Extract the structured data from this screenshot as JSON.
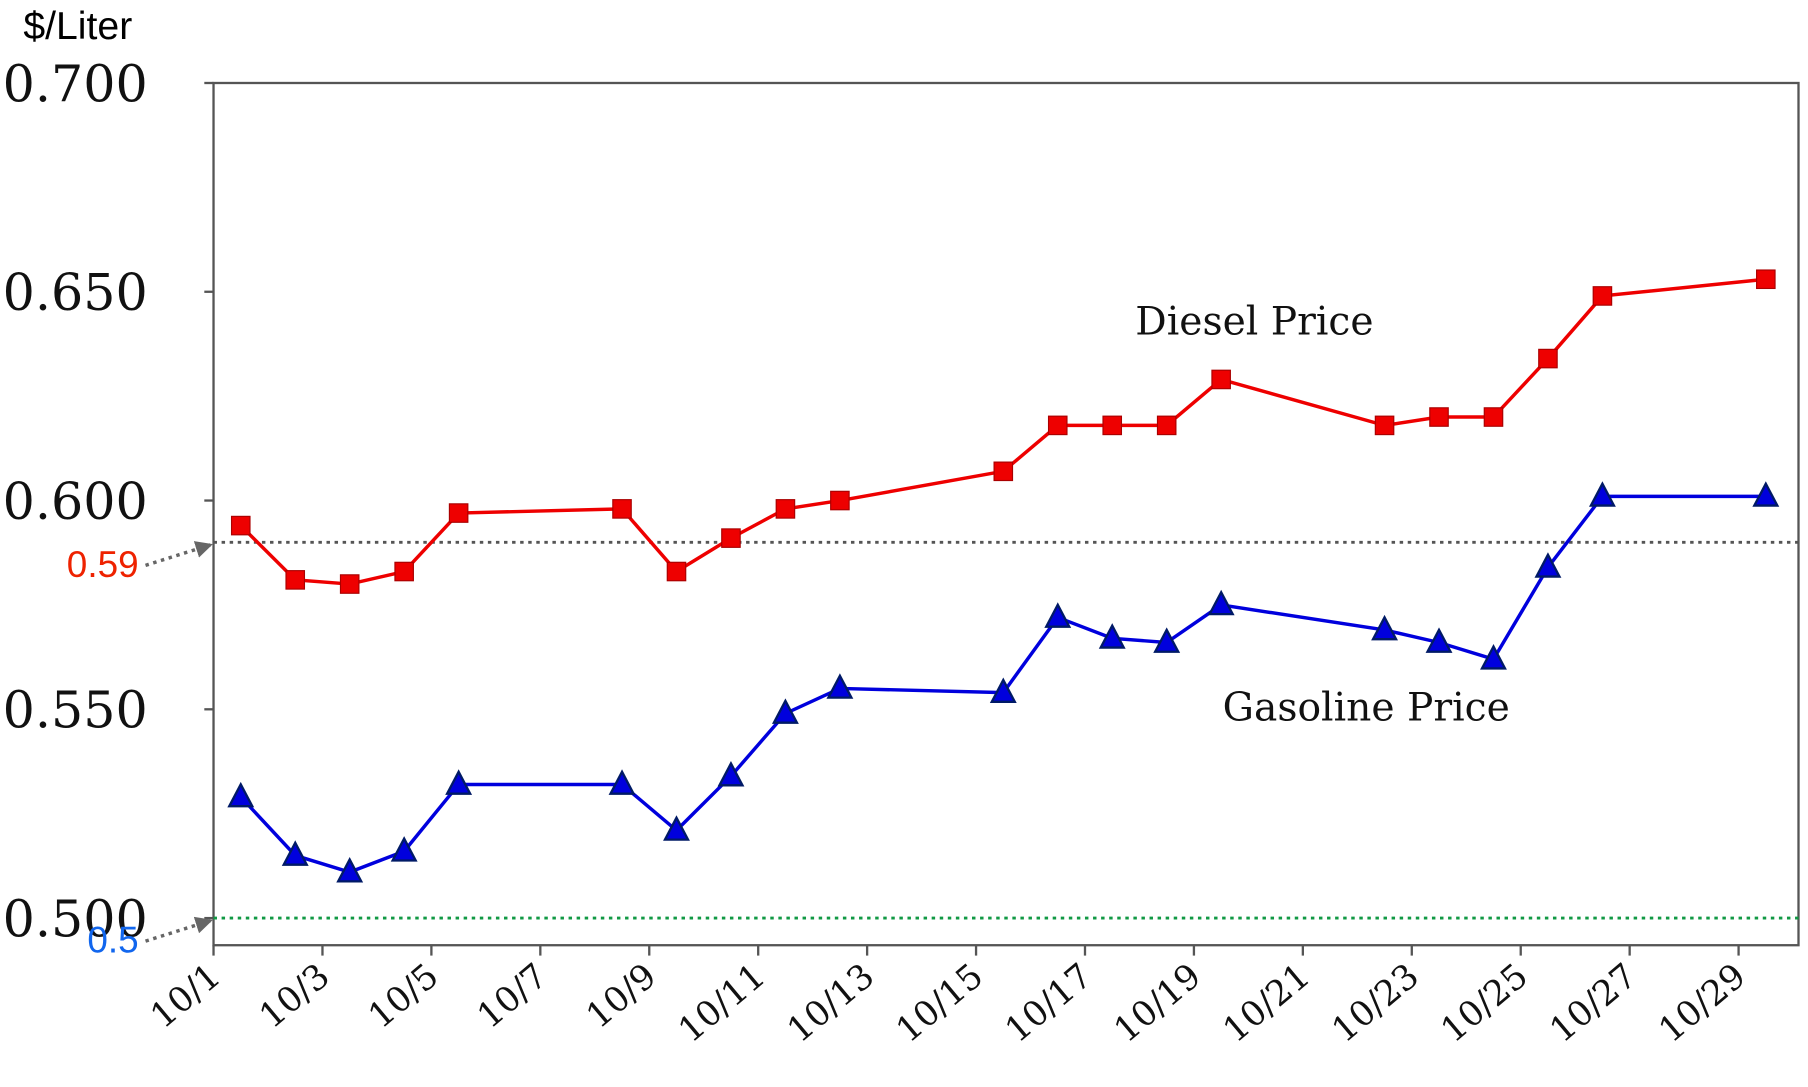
{
  "chart_data": {
    "type": "line",
    "y_axis_label": "$/Liter",
    "x": [
      1.5,
      2.5,
      3.5,
      4.5,
      5.5,
      8.5,
      9.5,
      10.5,
      11.5,
      12.5,
      15.5,
      16.5,
      17.5,
      18.5,
      19.5,
      22.5,
      23.5,
      24.5,
      25.5,
      26.5,
      29.5
    ],
    "series": [
      {
        "name": "Diesel Price",
        "color": "#ee0000",
        "marker": "square",
        "values": [
          0.594,
          0.581,
          0.58,
          0.583,
          0.597,
          0.598,
          0.583,
          0.591,
          0.598,
          0.6,
          0.607,
          0.618,
          0.618,
          0.618,
          0.629,
          0.618,
          0.62,
          0.62,
          0.634,
          0.649,
          0.653
        ]
      },
      {
        "name": "Gasoline Price",
        "color": "#0000dd",
        "marker": "triangle",
        "values": [
          0.529,
          0.515,
          0.511,
          0.516,
          0.532,
          0.532,
          0.521,
          0.534,
          0.549,
          0.555,
          0.554,
          0.572,
          0.567,
          0.566,
          0.575,
          0.569,
          0.566,
          0.562,
          0.584,
          0.601,
          0.601
        ]
      }
    ],
    "xlim": [
      1,
      30.1
    ],
    "xticks": [
      {
        "value": 1,
        "label": "10/1"
      },
      {
        "value": 3,
        "label": "10/3"
      },
      {
        "value": 5,
        "label": "10/5"
      },
      {
        "value": 7,
        "label": "10/7"
      },
      {
        "value": 9,
        "label": "10/9"
      },
      {
        "value": 11,
        "label": "10/11"
      },
      {
        "value": 13,
        "label": "10/13"
      },
      {
        "value": 15,
        "label": "10/15"
      },
      {
        "value": 17,
        "label": "10/17"
      },
      {
        "value": 19,
        "label": "10/19"
      },
      {
        "value": 21,
        "label": "10/21"
      },
      {
        "value": 23,
        "label": "10/23"
      },
      {
        "value": 25,
        "label": "10/25"
      },
      {
        "value": 27,
        "label": "10/27"
      },
      {
        "value": 29,
        "label": "10/29"
      }
    ],
    "ylim": [
      0.4935,
      0.7
    ],
    "yticks": [
      {
        "value": 0.7,
        "label": "0.700"
      },
      {
        "value": 0.65,
        "label": "0.650"
      },
      {
        "value": 0.6,
        "label": "0.600"
      },
      {
        "value": 0.55,
        "label": "0.550"
      },
      {
        "value": 0.5,
        "label": "0.500"
      }
    ],
    "reference_lines": [
      {
        "value": 0.59,
        "color": "#555555",
        "label_color": "#ee2200"
      },
      {
        "value": 0.5,
        "color": "#119944",
        "label_color": "#1166ee"
      }
    ]
  }
}
